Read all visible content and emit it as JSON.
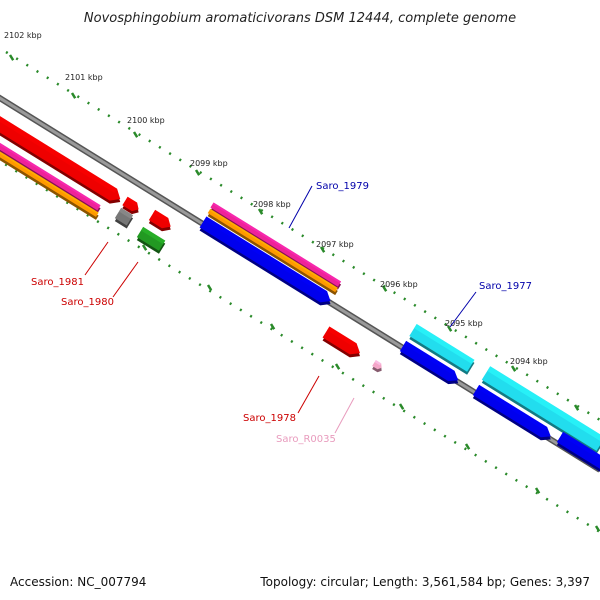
{
  "title": "Novosphingobium aromaticivorans DSM 12444, complete genome",
  "footer": {
    "accession": "Accession: NC_007794",
    "summary": "Topology: circular; Length: 3,561,584 bp; Genes: 3,397"
  },
  "ticks": [
    "2102 kbp",
    "2101 kbp",
    "2100 kbp",
    "2099 kbp",
    "2098 kbp",
    "2097 kbp",
    "2096 kbp",
    "2095 kbp",
    "2094 kbp"
  ],
  "gene_labels": [
    {
      "id": "saro_1979",
      "text": "Saro_1979",
      "color": "#0000aa"
    },
    {
      "id": "saro_1977",
      "text": "Saro_1977",
      "color": "#0000aa"
    },
    {
      "id": "saro_1981",
      "text": "Saro_1981",
      "color": "#cc0000"
    },
    {
      "id": "saro_1980",
      "text": "Saro_1980",
      "color": "#cc0000"
    },
    {
      "id": "saro_1978",
      "text": "Saro_1978",
      "color": "#cc0000"
    },
    {
      "id": "saro_r0035",
      "text": "Saro_R0035",
      "color": "#e89bbd"
    }
  ],
  "colors": {
    "backbone": "#7a7a7a",
    "ruler": "#2a8a2a",
    "cds": "#ee0000",
    "gene": "#0000ee",
    "mrna": "#ee2299",
    "rna": "#ff9900",
    "cds_fwd": "#22ddee",
    "misc": "#777777",
    "other": "#229922",
    "rrna": "#f4a6c8"
  }
}
